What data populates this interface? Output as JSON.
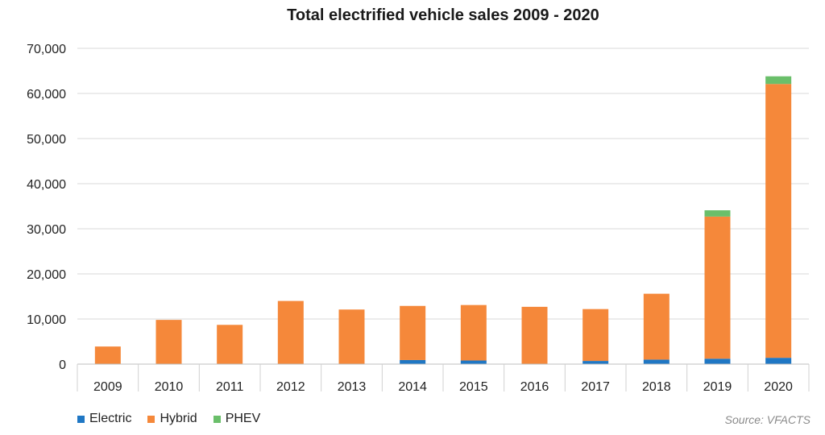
{
  "chart_data": {
    "type": "bar",
    "stacked": true,
    "title": "Total electrified vehicle sales 2009 - 2020",
    "xlabel": "",
    "ylabel": "",
    "categories": [
      "2009",
      "2010",
      "2011",
      "2012",
      "2013",
      "2014",
      "2015",
      "2016",
      "2017",
      "2018",
      "2019",
      "2020"
    ],
    "series": [
      {
        "name": "Electric",
        "color": "#1f77c4",
        "values": [
          0,
          0,
          0,
          0,
          0,
          900,
          800,
          0,
          700,
          1000,
          1200,
          1400
        ]
      },
      {
        "name": "Hybrid",
        "color": "#f5883a",
        "values": [
          3900,
          9800,
          8700,
          14000,
          12100,
          12000,
          12300,
          12700,
          11500,
          14600,
          31500,
          60700
        ]
      },
      {
        "name": "PHEV",
        "color": "#6abf6a",
        "values": [
          0,
          0,
          0,
          0,
          0,
          0,
          0,
          0,
          0,
          0,
          1400,
          1700
        ]
      }
    ],
    "ylim": [
      0,
      70000
    ],
    "yticks": [
      "0",
      "10,000",
      "20,000",
      "30,000",
      "40,000",
      "50,000",
      "60,000",
      "70,000"
    ],
    "ytick_values": [
      0,
      10000,
      20000,
      30000,
      40000,
      50000,
      60000,
      70000
    ],
    "grid": true,
    "legend": "bottom-left",
    "source": "Source: VFACTS"
  }
}
